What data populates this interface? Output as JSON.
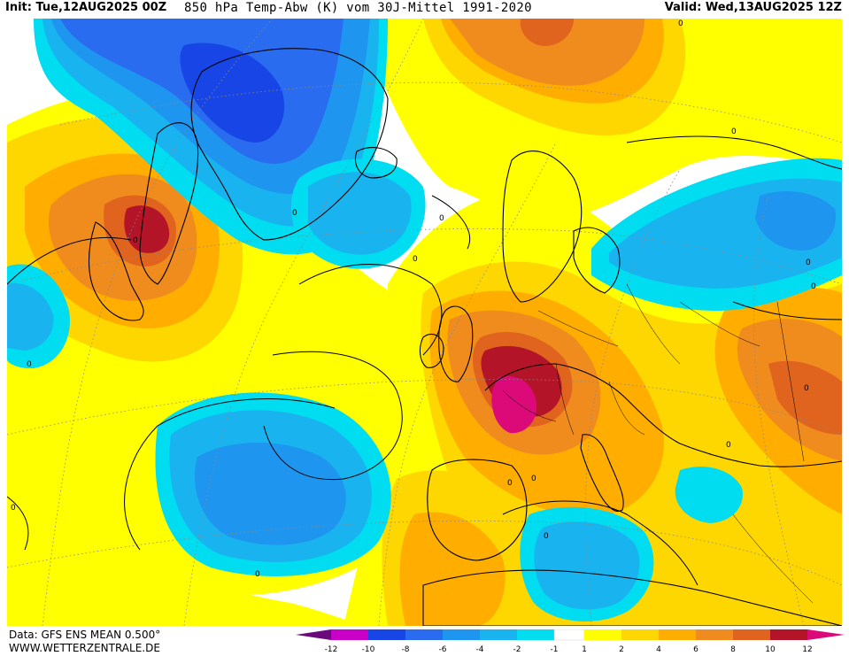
{
  "header": {
    "init": "Init: Tue,12AUG2025 00Z",
    "title": "850 hPa Temp-Abw (K) vom 30J-Mittel 1991-2020",
    "valid": "Valid: Wed,13AUG2025 12Z"
  },
  "footer": {
    "data_source": "Data: GFS ENS MEAN 0.500°",
    "website": "WWW.WETTERZENTRALE.DE"
  },
  "colors": {
    "ocean_background": "#ffffff",
    "lt_minus12": "#6b0a7a",
    "minus12_minus10": "#c800c8",
    "minus10_minus8": "#1846e6",
    "minus8_minus6": "#2a6cf0",
    "minus6_minus4": "#1e96f0",
    "minus4_minus2": "#19b4f0",
    "minus2_minus1": "#00dcf0",
    "minus1_1": "#ffffff",
    "1_2": "#ffff00",
    "2_4": "#ffd700",
    "4_6": "#ffae00",
    "6_8": "#f08c1e",
    "8_10": "#e0641e",
    "10_12": "#b41428",
    "gt_12": "#dc0a78"
  },
  "legend": {
    "labels": [
      "-12",
      "-10",
      "-8",
      "-6",
      "-4",
      "-2",
      "-1",
      "1",
      "2",
      "4",
      "6",
      "8",
      "10",
      "12"
    ]
  },
  "contour_labels": [
    "0",
    "0",
    "0",
    "0",
    "0",
    "0",
    "0",
    "0",
    "0",
    "0",
    "0",
    "0",
    "0",
    "0",
    "0",
    "0"
  ]
}
